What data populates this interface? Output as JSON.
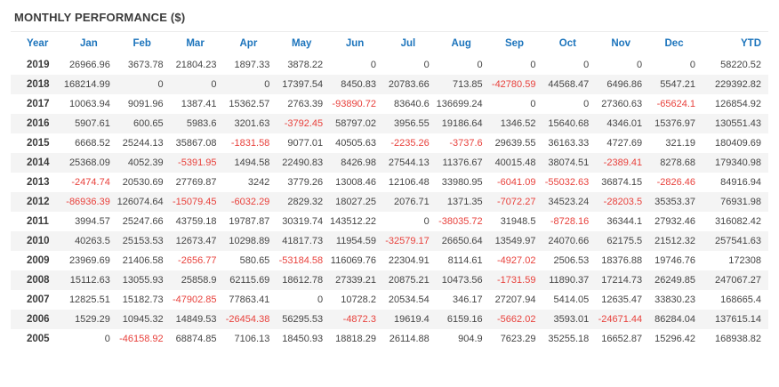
{
  "page": {
    "title": "MONTHLY PERFORMANCE ($)"
  },
  "colors": {
    "header_text": "#1c74bc",
    "negative": "#e8413c",
    "positive": "#454545",
    "row_stripe": "#f4f4f4"
  },
  "table": {
    "columns": [
      "Year",
      "Jan",
      "Feb",
      "Mar",
      "Apr",
      "May",
      "Jun",
      "Jul",
      "Aug",
      "Sep",
      "Oct",
      "Nov",
      "Dec",
      "YTD"
    ],
    "rows": [
      {
        "year": "2019",
        "values": [
          "26966.96",
          "3673.78",
          "21804.23",
          "1897.33",
          "3878.22",
          "0",
          "0",
          "0",
          "0",
          "0",
          "0",
          "0",
          "58220.52"
        ]
      },
      {
        "year": "2018",
        "values": [
          "168214.99",
          "0",
          "0",
          "0",
          "17397.54",
          "8450.83",
          "20783.66",
          "713.85",
          "-42780.59",
          "44568.47",
          "6496.86",
          "5547.21",
          "229392.82"
        ]
      },
      {
        "year": "2017",
        "values": [
          "10063.94",
          "9091.96",
          "1387.41",
          "15362.57",
          "2763.39",
          "-93890.72",
          "83640.6",
          "136699.24",
          "0",
          "0",
          "27360.63",
          "-65624.1",
          "126854.92"
        ]
      },
      {
        "year": "2016",
        "values": [
          "5907.61",
          "600.65",
          "5983.6",
          "3201.63",
          "-3792.45",
          "58797.02",
          "3956.55",
          "19186.64",
          "1346.52",
          "15640.68",
          "4346.01",
          "15376.97",
          "130551.43"
        ]
      },
      {
        "year": "2015",
        "values": [
          "6668.52",
          "25244.13",
          "35867.08",
          "-1831.58",
          "9077.01",
          "40505.63",
          "-2235.26",
          "-3737.6",
          "29639.55",
          "36163.33",
          "4727.69",
          "321.19",
          "180409.69"
        ]
      },
      {
        "year": "2014",
        "values": [
          "25368.09",
          "4052.39",
          "-5391.95",
          "1494.58",
          "22490.83",
          "8426.98",
          "27544.13",
          "11376.67",
          "40015.48",
          "38074.51",
          "-2389.41",
          "8278.68",
          "179340.98"
        ]
      },
      {
        "year": "2013",
        "values": [
          "-2474.74",
          "20530.69",
          "27769.87",
          "3242",
          "3779.26",
          "13008.46",
          "12106.48",
          "33980.95",
          "-6041.09",
          "-55032.63",
          "36874.15",
          "-2826.46",
          "84916.94"
        ]
      },
      {
        "year": "2012",
        "values": [
          "-86936.39",
          "126074.64",
          "-15079.45",
          "-6032.29",
          "2829.32",
          "18027.25",
          "2076.71",
          "1371.35",
          "-7072.27",
          "34523.24",
          "-28203.5",
          "35353.37",
          "76931.98"
        ]
      },
      {
        "year": "2011",
        "values": [
          "3994.57",
          "25247.66",
          "43759.18",
          "19787.87",
          "30319.74",
          "143512.22",
          "0",
          "-38035.72",
          "31948.5",
          "-8728.16",
          "36344.1",
          "27932.46",
          "316082.42"
        ]
      },
      {
        "year": "2010",
        "values": [
          "40263.5",
          "25153.53",
          "12673.47",
          "10298.89",
          "41817.73",
          "11954.59",
          "-32579.17",
          "26650.64",
          "13549.97",
          "24070.66",
          "62175.5",
          "21512.32",
          "257541.63"
        ]
      },
      {
        "year": "2009",
        "values": [
          "23969.69",
          "21406.58",
          "-2656.77",
          "580.65",
          "-53184.58",
          "116069.76",
          "22304.91",
          "8114.61",
          "-4927.02",
          "2506.53",
          "18376.88",
          "19746.76",
          "172308"
        ]
      },
      {
        "year": "2008",
        "values": [
          "15112.63",
          "13055.93",
          "25858.9",
          "62115.69",
          "18612.78",
          "27339.21",
          "20875.21",
          "10473.56",
          "-1731.59",
          "11890.37",
          "17214.73",
          "26249.85",
          "247067.27"
        ]
      },
      {
        "year": "2007",
        "values": [
          "12825.51",
          "15182.73",
          "-47902.85",
          "77863.41",
          "0",
          "10728.2",
          "20534.54",
          "346.17",
          "27207.94",
          "5414.05",
          "12635.47",
          "33830.23",
          "168665.4"
        ]
      },
      {
        "year": "2006",
        "values": [
          "1529.29",
          "10945.32",
          "14849.53",
          "-26454.38",
          "56295.53",
          "-4872.3",
          "19619.4",
          "6159.16",
          "-5662.02",
          "3593.01",
          "-24671.44",
          "86284.04",
          "137615.14"
        ]
      },
      {
        "year": "2005",
        "values": [
          "0",
          "-46158.92",
          "68874.85",
          "7106.13",
          "18450.93",
          "18818.29",
          "26114.88",
          "904.9",
          "7623.29",
          "35255.18",
          "16652.87",
          "15296.42",
          "168938.82"
        ]
      }
    ]
  }
}
